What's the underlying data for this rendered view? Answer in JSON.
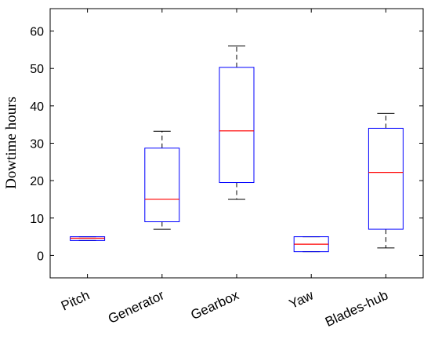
{
  "chart_data": {
    "type": "boxplot",
    "ylabel": "Dowtime hours",
    "xlabel": "",
    "ylim": [
      -6,
      66
    ],
    "yticks": [
      0,
      10,
      20,
      30,
      40,
      50,
      60
    ],
    "grid": false,
    "categories": [
      "Pitch",
      "Generator",
      "Gearbox",
      "Yaw",
      "Blades-hub"
    ],
    "boxes": [
      {
        "category": "Pitch",
        "whisker_low": 4,
        "q1": 4,
        "median": 4.6,
        "q3": 5,
        "whisker_high": 5
      },
      {
        "category": "Generator",
        "whisker_low": 7,
        "q1": 9,
        "median": 15,
        "q3": 28.7,
        "whisker_high": 33.2
      },
      {
        "category": "Gearbox",
        "whisker_low": 15,
        "q1": 19.5,
        "median": 33.3,
        "q3": 50.3,
        "whisker_high": 56
      },
      {
        "category": "Yaw",
        "whisker_low": 1,
        "q1": 1,
        "median": 3,
        "q3": 5,
        "whisker_high": 5
      },
      {
        "category": "Blades-hub",
        "whisker_low": 2,
        "q1": 7,
        "median": 22.2,
        "q3": 34,
        "whisker_high": 38
      }
    ],
    "colors": {
      "box": "#0000ff",
      "median": "#ff0000",
      "whisker": "#000000"
    }
  }
}
